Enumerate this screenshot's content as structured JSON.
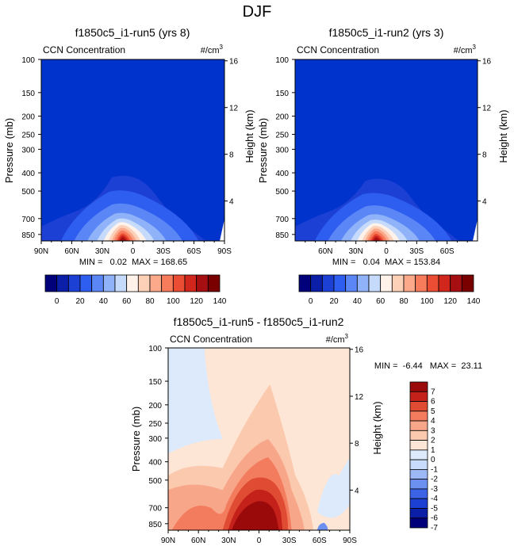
{
  "page_title": "DJF",
  "colors": {
    "frame": "#000000",
    "background_top": "#0033cc",
    "background_diff": "#fde6d6",
    "seq_palette": [
      "#00007a",
      "#0a1ea8",
      "#1c3fd4",
      "#2e5ef0",
      "#5b86f5",
      "#8fb2f8",
      "#c6dbfb",
      "#fff2ea",
      "#fdd0b8",
      "#fca88a",
      "#f77c5c",
      "#ea4d33",
      "#d0261b",
      "#a60f12",
      "#7a0000"
    ],
    "div_palette": [
      "#00007a",
      "#0a1ea8",
      "#1c3fd4",
      "#3c63e6",
      "#6c90f0",
      "#9cb8f6",
      "#c8dbfb",
      "#ddeafc",
      "#fde6d6",
      "#fbc9ad",
      "#f8a68a",
      "#f27c5d",
      "#e04c33",
      "#c4211a",
      "#9b0a0a"
    ]
  },
  "chart_data": [
    {
      "type": "heatmap",
      "panel": "top-left",
      "title": "f1850c5_i1-run5 (yrs 8)",
      "left_label": "CCN Concentration",
      "units_base": "#/cm",
      "units_sup": "3",
      "ylabel": "Pressure (mb)",
      "y2label": "Height (km)",
      "y_ticks": [
        100,
        150,
        200,
        250,
        300,
        400,
        500,
        700,
        850
      ],
      "y2_ticks": [
        16,
        12,
        8,
        4
      ],
      "x_ticks": [
        "90N",
        "60N",
        "30N",
        "0",
        "30S",
        "60S",
        "90S"
      ],
      "stats": "MIN =   0.02  MAX = 168.65",
      "min": 0.02,
      "max": 168.65
    },
    {
      "type": "heatmap",
      "panel": "top-right",
      "title": "f1850c5_i1-run2 (yrs 3)",
      "left_label": "CCN Concentration",
      "units_base": "#/cm",
      "units_sup": "3",
      "ylabel": "Pressure (mb)",
      "y2label": "Height (km)",
      "y_ticks": [
        100,
        150,
        200,
        250,
        300,
        400,
        500,
        700,
        850
      ],
      "y2_ticks": [
        16,
        12,
        8,
        4
      ],
      "x_ticks": [
        "60N",
        "30N",
        "0",
        "30S",
        "60S"
      ],
      "stats": "MIN =   0.04  MAX = 153.84",
      "min": 0.04,
      "max": 153.84
    },
    {
      "type": "heatmap",
      "panel": "bottom",
      "title": "f1850c5_i1-run5 - f1850c5_i1-run2",
      "left_label": "CCN Concentration",
      "units_base": "#/cm",
      "units_sup": "3",
      "ylabel": "Pressure (mb)",
      "y2label": "Height (km)",
      "y_ticks": [
        100,
        150,
        200,
        250,
        300,
        400,
        500,
        700,
        850
      ],
      "y2_ticks": [
        16,
        12,
        8,
        4
      ],
      "x_ticks": [
        "90N",
        "60N",
        "30N",
        "0",
        "30S",
        "60S",
        "90S"
      ],
      "stats": "MIN =  -6.44   MAX =  23.11",
      "min": -6.44,
      "max": 23.11
    }
  ],
  "colorbars": {
    "top_labels": [
      "0",
      "20",
      "40",
      "60",
      "80",
      "100",
      "120",
      "140"
    ],
    "diff_labels": [
      "7",
      "6",
      "5",
      "4",
      "3",
      "2",
      "1",
      "0",
      "-1",
      "-2",
      "-3",
      "-4",
      "-5",
      "-6",
      "-7"
    ]
  }
}
